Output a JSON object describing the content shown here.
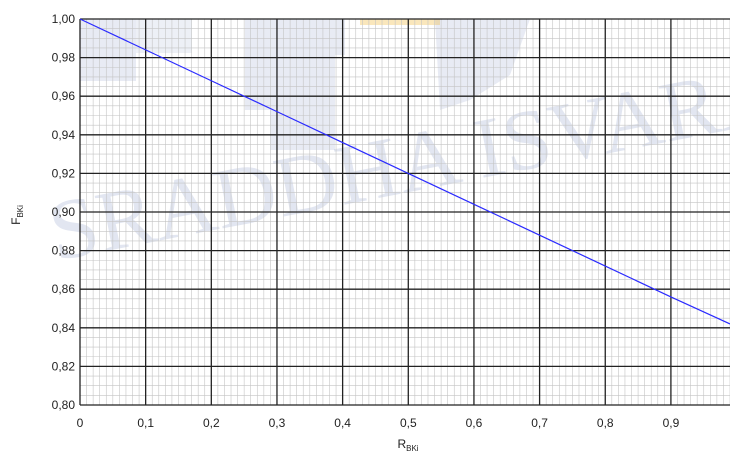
{
  "watermark": {
    "text": "SRADDHA ISVARA",
    "color": "#1f3f8f",
    "accent": "#f0b020"
  },
  "chart_data": {
    "type": "line",
    "title": "",
    "xlabel": "R",
    "xlabel_sub": "BKi",
    "ylabel": "F",
    "ylabel_sub": "BKi",
    "xlim": [
      0,
      0.99
    ],
    "ylim": [
      0.8,
      1.0
    ],
    "x_ticks": [
      0,
      0.1,
      0.2,
      0.3,
      0.4,
      0.5,
      0.6,
      0.7,
      0.8,
      0.9
    ],
    "x_tick_labels": [
      "0",
      "0,1",
      "0,2",
      "0,3",
      "0,4",
      "0,5",
      "0,6",
      "0,7",
      "0,8",
      "0,9"
    ],
    "y_ticks": [
      0.8,
      0.82,
      0.84,
      0.86,
      0.88,
      0.9,
      0.92,
      0.94,
      0.96,
      0.98,
      1.0
    ],
    "y_tick_labels": [
      "0,80",
      "0,82",
      "0,84",
      "0,86",
      "0,88",
      "0,90",
      "0,92",
      "0,94",
      "0,96",
      "0,98",
      "1,00"
    ],
    "grid": true,
    "series": [
      {
        "color": "#2b2bff",
        "x": [
          0,
          0.1,
          0.2,
          0.3,
          0.4,
          0.5,
          0.6,
          0.7,
          0.8,
          0.9,
          0.99
        ],
        "y": [
          1.0,
          0.984,
          0.968,
          0.952,
          0.936,
          0.92,
          0.904,
          0.888,
          0.872,
          0.856,
          0.842
        ]
      }
    ]
  }
}
